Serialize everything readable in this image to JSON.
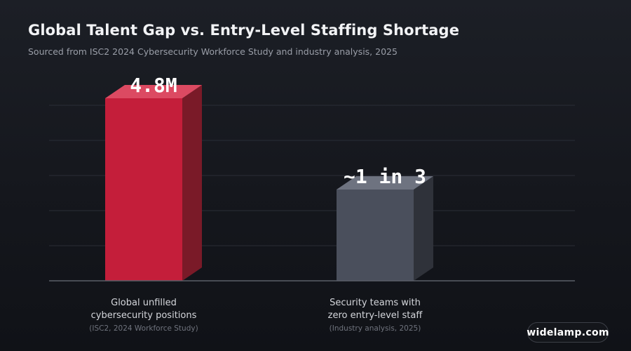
{
  "title": "Global Talent Gap vs. Entry-Level Staffing Shortage",
  "subtitle": "Sourced from ISC2 2024 Cybersecurity Workforce Study and industry analysis, 2025",
  "watermark": "widelamp.com",
  "colors": {
    "bar_primary_front": "#c41e3a",
    "bar_primary_top": "#dc4a62",
    "bar_primary_side": "#7a1a28",
    "bar_secondary_front": "#4a4f5c",
    "bar_secondary_top": "#6e7380",
    "bar_secondary_side": "#2f323a"
  },
  "chart_data": {
    "type": "bar",
    "style": "3d-columns",
    "grid": true,
    "categories": [
      {
        "label_lines": [
          "Global unfilled",
          "cybersecurity positions"
        ],
        "source": "(ISC2, 2024 Workforce Study)",
        "value_label": "4.8M",
        "relative_height": 1.0
      },
      {
        "label_lines": [
          "Security teams with",
          "zero entry-level staff"
        ],
        "source": "(Industry analysis, 2025)",
        "value_label": "~1 in 3",
        "relative_height": 0.5
      }
    ]
  }
}
